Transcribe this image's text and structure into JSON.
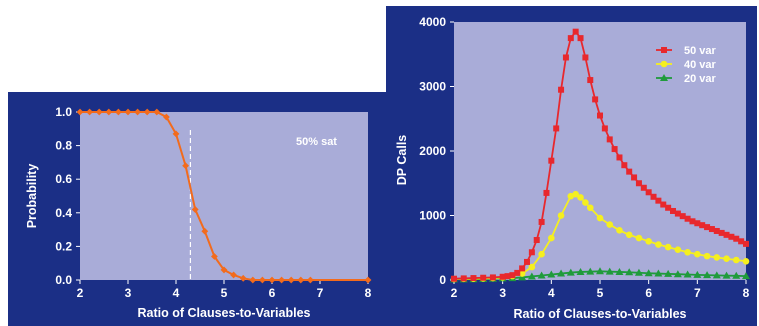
{
  "chart_data": [
    {
      "type": "line",
      "xlabel": "Ratio of Clauses-to-Variables",
      "ylabel": "Probability",
      "xlim": [
        2,
        8
      ],
      "ylim": [
        0,
        1
      ],
      "x_ticks": [
        "2",
        "3",
        "4",
        "5",
        "6",
        "7",
        "8"
      ],
      "y_ticks": [
        "0.0",
        "0.2",
        "0.4",
        "0.6",
        "0.8",
        "1.0"
      ],
      "annotation": "50% sat",
      "threshold_x": 4.3,
      "colors": {
        "background": "#1b2f86",
        "plot": "#a9acd8",
        "line": "#f26b1d",
        "threshold": "#ffffff"
      },
      "series": [
        {
          "x": [
            2.0,
            2.2,
            2.4,
            2.6,
            2.8,
            3.0,
            3.2,
            3.4,
            3.6,
            3.8,
            4.0,
            4.2,
            4.4,
            4.6,
            4.8,
            5.0,
            5.2,
            5.4,
            5.6,
            5.8,
            6.0,
            6.2,
            6.4,
            6.6,
            6.8,
            8.0
          ],
          "values": [
            1.0,
            1.0,
            1.0,
            1.0,
            1.0,
            1.0,
            1.0,
            1.0,
            1.0,
            0.97,
            0.87,
            0.68,
            0.42,
            0.29,
            0.14,
            0.06,
            0.03,
            0.01,
            0.0,
            0.0,
            0.0,
            0.0,
            0.0,
            0.0,
            0.0,
            0.0
          ]
        }
      ]
    },
    {
      "type": "line",
      "xlabel": "Ratio of Clauses-to-Variables",
      "ylabel": "DP Calls",
      "xlim": [
        2,
        8
      ],
      "ylim": [
        0,
        4000
      ],
      "x_ticks": [
        "2",
        "3",
        "4",
        "5",
        "6",
        "7",
        "8"
      ],
      "y_ticks": [
        "0",
        "1000",
        "2000",
        "3000",
        "4000"
      ],
      "legend_position": "top-right",
      "colors": {
        "background": "#1b2f86",
        "plot": "#a9acd8"
      },
      "x": [
        2.0,
        2.2,
        2.4,
        2.6,
        2.8,
        3.0,
        3.2,
        3.4,
        3.6,
        3.8,
        4.0,
        4.2,
        4.4,
        4.6,
        4.8,
        5.0,
        5.2,
        5.4,
        5.6,
        5.8,
        6.0,
        6.2,
        6.4,
        6.6,
        6.8,
        7.0,
        7.2,
        7.4,
        7.6,
        7.8,
        8.0
      ],
      "series": [
        {
          "name": "50 var",
          "color": "#e8282d",
          "marker": "square",
          "x": [
            2.0,
            2.2,
            2.4,
            2.6,
            2.8,
            3.0,
            3.1,
            3.2,
            3.3,
            3.4,
            3.5,
            3.6,
            3.7,
            3.8,
            3.9,
            4.0,
            4.1,
            4.2,
            4.3,
            4.4,
            4.5,
            4.6,
            4.7,
            4.8,
            4.9,
            5.0,
            5.1,
            5.2,
            5.3,
            5.4,
            5.5,
            5.6,
            5.7,
            5.8,
            5.9,
            6.0,
            6.1,
            6.2,
            6.3,
            6.4,
            6.5,
            6.6,
            6.7,
            6.8,
            6.9,
            7.0,
            7.1,
            7.2,
            7.3,
            7.4,
            7.5,
            7.6,
            7.7,
            7.8,
            7.9,
            8.0
          ],
          "values": [
            20,
            25,
            30,
            35,
            40,
            50,
            60,
            75,
            110,
            180,
            280,
            430,
            620,
            900,
            1350,
            1850,
            2350,
            2950,
            3450,
            3750,
            3850,
            3750,
            3450,
            3100,
            2800,
            2550,
            2350,
            2180,
            2030,
            1900,
            1780,
            1680,
            1590,
            1500,
            1430,
            1360,
            1290,
            1230,
            1170,
            1120,
            1070,
            1030,
            990,
            950,
            910,
            880,
            850,
            820,
            790,
            760,
            730,
            700,
            670,
            640,
            600,
            560
          ]
        },
        {
          "name": "40 var",
          "color": "#f5ef1f",
          "marker": "circle",
          "x": [
            2.0,
            2.2,
            2.4,
            2.6,
            2.8,
            3.0,
            3.2,
            3.4,
            3.6,
            3.8,
            4.0,
            4.2,
            4.4,
            4.5,
            4.6,
            4.7,
            4.8,
            5.0,
            5.2,
            5.4,
            5.6,
            5.8,
            6.0,
            6.2,
            6.4,
            6.6,
            6.8,
            7.0,
            7.2,
            7.4,
            7.6,
            7.8,
            8.0
          ],
          "values": [
            15,
            18,
            20,
            25,
            30,
            40,
            60,
            100,
            200,
            400,
            650,
            1000,
            1300,
            1330,
            1280,
            1200,
            1120,
            960,
            860,
            770,
            700,
            650,
            600,
            550,
            510,
            470,
            430,
            400,
            370,
            350,
            330,
            310,
            290
          ]
        },
        {
          "name": "20 var",
          "color": "#1f9b3b",
          "marker": "triangle",
          "x": [
            2.0,
            2.2,
            2.4,
            2.6,
            2.8,
            3.0,
            3.2,
            3.4,
            3.6,
            3.8,
            4.0,
            4.2,
            4.4,
            4.6,
            4.8,
            5.0,
            5.2,
            5.4,
            5.6,
            5.8,
            6.0,
            6.2,
            6.4,
            6.6,
            6.8,
            7.0,
            7.2,
            7.4,
            7.6,
            7.8,
            8.0
          ],
          "values": [
            10,
            10,
            12,
            15,
            20,
            25,
            30,
            40,
            55,
            70,
            85,
            100,
            115,
            125,
            130,
            135,
            130,
            125,
            120,
            112,
            105,
            100,
            95,
            90,
            85,
            80,
            76,
            72,
            68,
            65,
            60
          ]
        }
      ]
    }
  ]
}
